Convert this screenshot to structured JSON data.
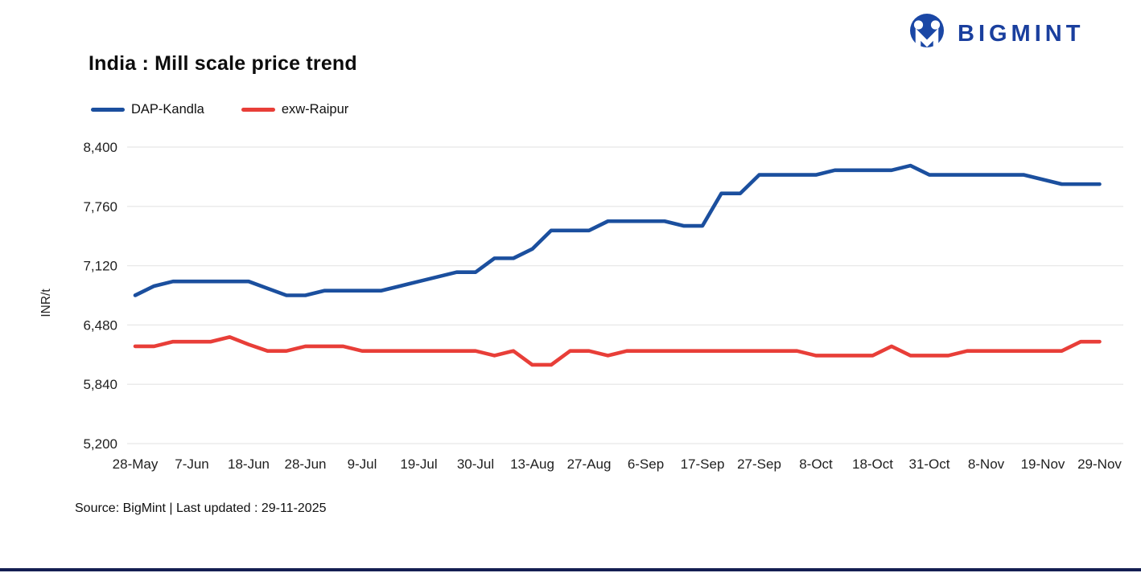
{
  "logo": {
    "text": "BIGMINT",
    "icon_color": "#1a47a5"
  },
  "title": "India : Mill scale price trend",
  "footer": "Source: BigMint | Last updated : 29-11-2025",
  "colors": {
    "series_blue": "#1b4f9e",
    "series_red": "#e83e38",
    "gridline": "#e8e8e8",
    "bottom_bar": "#141e52",
    "logo_blue": "#1a3f9e"
  },
  "chart_data": {
    "type": "line",
    "title": "India : Mill scale price trend",
    "xlabel": "",
    "ylabel": "INR/t",
    "ylim": [
      5200,
      8400
    ],
    "ytick_values": [
      8400,
      7760,
      7120,
      6480,
      5840,
      5200
    ],
    "grid": "horizontal",
    "legend_position": "top-left",
    "x_labels": [
      "28-May",
      "7-Jun",
      "18-Jun",
      "28-Jun",
      "9-Jul",
      "19-Jul",
      "30-Jul",
      "13-Aug",
      "27-Aug",
      "6-Sep",
      "17-Sep",
      "27-Sep",
      "8-Oct",
      "18-Oct",
      "31-Oct",
      "8-Nov",
      "19-Nov",
      "29-Nov"
    ],
    "label_every": 3,
    "points_per_series": 52,
    "series": [
      {
        "name": "DAP-Kandla",
        "color": "#1b4f9e",
        "values": [
          6800,
          6900,
          6950,
          6950,
          6950,
          6950,
          6950,
          6875,
          6800,
          6800,
          6850,
          6850,
          6850,
          6850,
          6900,
          6950,
          7000,
          7050,
          7050,
          7200,
          7200,
          7300,
          7500,
          7500,
          7500,
          7600,
          7600,
          7600,
          7600,
          7550,
          7550,
          7900,
          7900,
          8100,
          8100,
          8100,
          8100,
          8150,
          8150,
          8150,
          8150,
          8200,
          8100,
          8100,
          8100,
          8100,
          8100,
          8100,
          8050,
          8000,
          8000,
          8000
        ]
      },
      {
        "name": "exw-Raipur",
        "color": "#e83e38",
        "values": [
          6250,
          6250,
          6300,
          6300,
          6300,
          6350,
          6270,
          6200,
          6200,
          6250,
          6250,
          6250,
          6200,
          6200,
          6200,
          6200,
          6200,
          6200,
          6200,
          6150,
          6200,
          6050,
          6050,
          6200,
          6200,
          6150,
          6200,
          6200,
          6200,
          6200,
          6200,
          6200,
          6200,
          6200,
          6200,
          6200,
          6150,
          6150,
          6150,
          6150,
          6250,
          6150,
          6150,
          6150,
          6200,
          6200,
          6200,
          6200,
          6200,
          6200,
          6300,
          6300
        ]
      }
    ]
  }
}
